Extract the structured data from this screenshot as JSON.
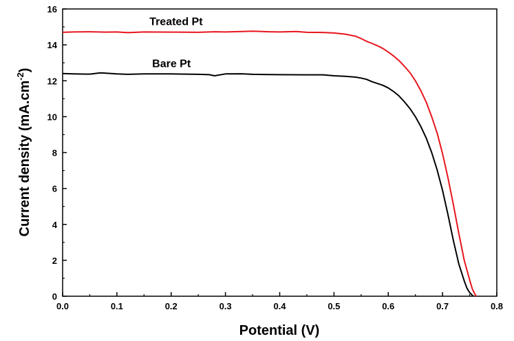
{
  "chart_data": {
    "type": "line",
    "xlabel": "Potential (V)",
    "ylabel_main": "Current density (mA.cm",
    "ylabel_sup": "-2",
    "ylabel_close": ")",
    "xlim": [
      0.0,
      0.8
    ],
    "ylim": [
      0,
      16
    ],
    "xticks": [
      "0.0",
      "0.1",
      "0.2",
      "0.3",
      "0.4",
      "0.5",
      "0.6",
      "0.7",
      "0.8"
    ],
    "yticks": [
      "0",
      "2",
      "4",
      "6",
      "8",
      "10",
      "12",
      "14",
      "16"
    ],
    "grid": false,
    "series": [
      {
        "name": "Treated Pt",
        "color": "#e8141c",
        "label_at": [
          0.16,
          15.1
        ],
        "x": [
          0.0,
          0.02,
          0.05,
          0.08,
          0.1,
          0.12,
          0.15,
          0.2,
          0.25,
          0.28,
          0.3,
          0.33,
          0.35,
          0.38,
          0.4,
          0.43,
          0.45,
          0.48,
          0.5,
          0.52,
          0.54,
          0.55,
          0.56,
          0.57,
          0.58,
          0.59,
          0.6,
          0.61,
          0.62,
          0.63,
          0.64,
          0.65,
          0.66,
          0.67,
          0.68,
          0.69,
          0.7,
          0.71,
          0.72,
          0.73,
          0.74,
          0.75,
          0.755,
          0.76,
          0.762
        ],
        "y": [
          14.7,
          14.72,
          14.73,
          14.71,
          14.72,
          14.68,
          14.72,
          14.71,
          14.7,
          14.73,
          14.72,
          14.74,
          14.76,
          14.73,
          14.72,
          14.74,
          14.7,
          14.69,
          14.66,
          14.6,
          14.48,
          14.35,
          14.2,
          14.08,
          13.95,
          13.8,
          13.6,
          13.38,
          13.12,
          12.8,
          12.45,
          12.0,
          11.45,
          10.8,
          10.0,
          9.1,
          7.95,
          6.6,
          5.1,
          3.5,
          2.0,
          0.9,
          0.4,
          0.1,
          0.0
        ]
      },
      {
        "name": "Bare Pt",
        "color": "#000000",
        "label_at": [
          0.165,
          12.75
        ],
        "x": [
          0.0,
          0.02,
          0.05,
          0.07,
          0.1,
          0.12,
          0.15,
          0.2,
          0.25,
          0.27,
          0.28,
          0.3,
          0.33,
          0.35,
          0.4,
          0.45,
          0.48,
          0.5,
          0.52,
          0.54,
          0.55,
          0.56,
          0.57,
          0.58,
          0.59,
          0.6,
          0.61,
          0.62,
          0.63,
          0.64,
          0.65,
          0.66,
          0.67,
          0.68,
          0.69,
          0.7,
          0.71,
          0.72,
          0.73,
          0.74,
          0.745,
          0.75,
          0.755,
          0.757
        ],
        "y": [
          12.4,
          12.38,
          12.37,
          12.44,
          12.38,
          12.36,
          12.38,
          12.38,
          12.36,
          12.34,
          12.28,
          12.38,
          12.39,
          12.36,
          12.34,
          12.33,
          12.33,
          12.28,
          12.25,
          12.2,
          12.15,
          12.08,
          11.95,
          11.85,
          11.75,
          11.6,
          11.4,
          11.15,
          10.82,
          10.45,
          10.0,
          9.45,
          8.8,
          8.0,
          7.05,
          5.9,
          4.55,
          3.1,
          1.8,
          0.85,
          0.45,
          0.2,
          0.05,
          0.0
        ]
      }
    ]
  }
}
